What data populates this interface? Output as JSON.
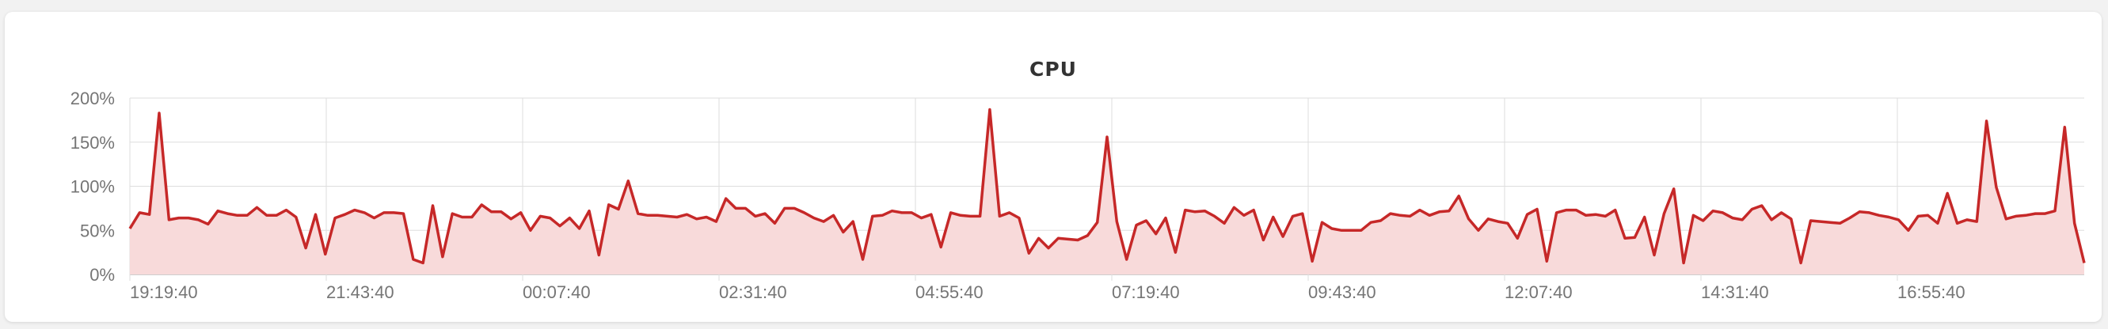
{
  "colors": {
    "line": "#c62828",
    "area": "#f8dada",
    "grid": "#dedede",
    "axis": "#bdbdbd",
    "tick_text": "#757575"
  },
  "chart_data": {
    "type": "area",
    "title": "CPU",
    "xlabel": "",
    "ylabel": "",
    "ylim": [
      0,
      200
    ],
    "y_ticks": [
      0,
      50,
      100,
      150,
      200
    ],
    "y_tick_labels": [
      "0%",
      "50%",
      "100%",
      "150%",
      "200%"
    ],
    "x_ticks": [
      "19:19:40",
      "21:43:40",
      "00:07:40",
      "02:31:40",
      "04:55:40",
      "07:19:40",
      "09:43:40",
      "12:07:40",
      "14:31:40",
      "16:55:40"
    ],
    "grid": true,
    "legend": "none",
    "series": [
      {
        "values": [
          52,
          70,
          68,
          183,
          62,
          64,
          64,
          62,
          57,
          72,
          69,
          67,
          67,
          76,
          67,
          67,
          73,
          65,
          30,
          68,
          23,
          64,
          68,
          73,
          70,
          64,
          70,
          70,
          69,
          17,
          13,
          78,
          20,
          69,
          65,
          65,
          79,
          71,
          71,
          63,
          70,
          50,
          66,
          64,
          55,
          64,
          52,
          72,
          22,
          79,
          74,
          106,
          69,
          67,
          67,
          66,
          65,
          68,
          63,
          65,
          60,
          86,
          75,
          75,
          66,
          69,
          58,
          75,
          75,
          70,
          64,
          60,
          67,
          48,
          60,
          17,
          66,
          67,
          72,
          70,
          70,
          64,
          68,
          31,
          70,
          67,
          66,
          66,
          187,
          66,
          70,
          64,
          24,
          41,
          30,
          41,
          40,
          39,
          44,
          59,
          156,
          60,
          17,
          56,
          61,
          46,
          64,
          25,
          73,
          71,
          72,
          66,
          58,
          76,
          67,
          73,
          39,
          65,
          43,
          66,
          69,
          15,
          59,
          52,
          50,
          50,
          50,
          59,
          61,
          69,
          67,
          66,
          73,
          67,
          71,
          72,
          89,
          63,
          50,
          63,
          60,
          58,
          41,
          68,
          74,
          15,
          70,
          73,
          73,
          67,
          68,
          66,
          73,
          41,
          42,
          65,
          22,
          69,
          97,
          13,
          67,
          61,
          72,
          70,
          64,
          62,
          74,
          78,
          62,
          70,
          63,
          13,
          61,
          60,
          59,
          58,
          64,
          71,
          70,
          67,
          65,
          62,
          50,
          66,
          67,
          58,
          92,
          58,
          62,
          60,
          174,
          99,
          63,
          66,
          67,
          69,
          69,
          72,
          167,
          58,
          13
        ]
      }
    ]
  }
}
